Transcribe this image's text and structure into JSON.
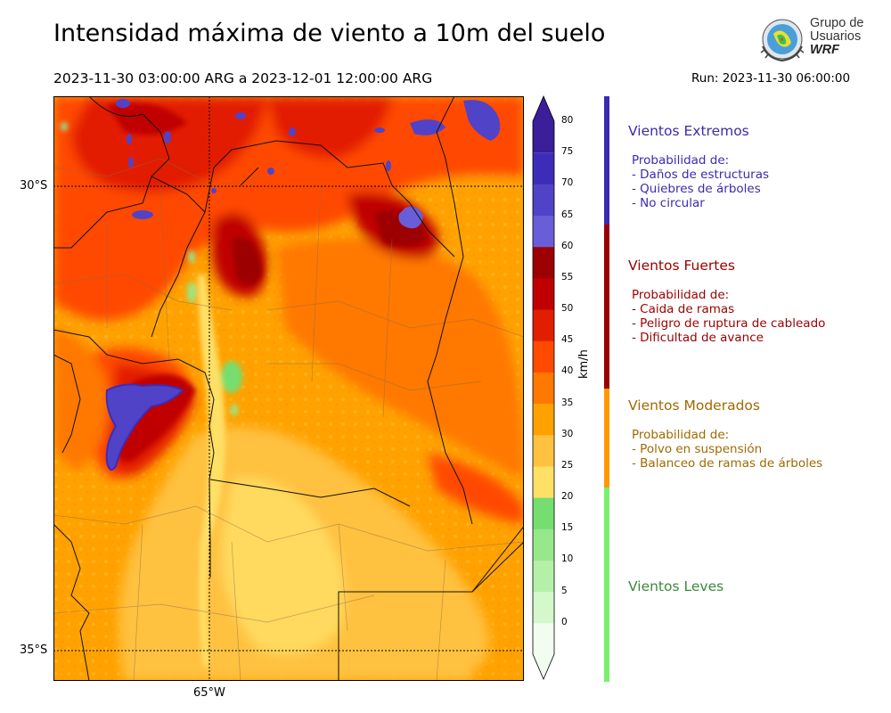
{
  "header": {
    "title": "Intensidad máxima de viento a 10m del suelo",
    "period": "2023-11-30 03:00:00 ARG  a  2023-12-01 12:00:00 ARG",
    "run": "Run: 2023-11-30 06:00:00"
  },
  "logo": {
    "line1": "Grupo de",
    "line2": "Usuarios",
    "line3": "WRF"
  },
  "axes": {
    "lat_labels": [
      "30°S",
      "35°S"
    ],
    "lon_labels": [
      "65°W"
    ]
  },
  "colorbar": {
    "unit": "km/h",
    "ticks": [
      "0",
      "5",
      "10",
      "15",
      "20",
      "25",
      "30",
      "35",
      "40",
      "45",
      "50",
      "55",
      "60",
      "65",
      "70",
      "75",
      "80"
    ],
    "colors": [
      "#f2fdf0",
      "#d4f8cc",
      "#b5f0a9",
      "#96e88a",
      "#76de70",
      "#ffe066",
      "#ffc140",
      "#ffa200",
      "#ff7800",
      "#ff4a00",
      "#e21e00",
      "#c00000",
      "#9d0000",
      "#6a5dd8",
      "#5143c8",
      "#3d2cb8",
      "#3a1e9a"
    ]
  },
  "categories": [
    {
      "title": "Vientos Extremos",
      "color": "#3b2bb0",
      "lines": [
        "Probabilidad de:",
        "- Daños de estructuras",
        "- Quiebres de árboles",
        "- No circular"
      ]
    },
    {
      "title": "Vientos Fuertes",
      "color": "#9a0000",
      "lines": [
        "Probabilidad de:",
        "- Caida de ramas",
        "- Peligro de ruptura de cableado",
        "- Dificultad de avance"
      ]
    },
    {
      "title": "Vientos Moderados",
      "color": "#a06a00",
      "lines": [
        "Probabilidad de:",
        "- Polvo en suspensión",
        "- Balanceo de ramas de árboles"
      ]
    },
    {
      "title": "Vientos Leves",
      "color": "#3a8a3a",
      "lines": []
    }
  ],
  "category_bar_colors": [
    "#3b2bb0",
    "#9a0000",
    "#ff9800",
    "#7cf06c"
  ]
}
